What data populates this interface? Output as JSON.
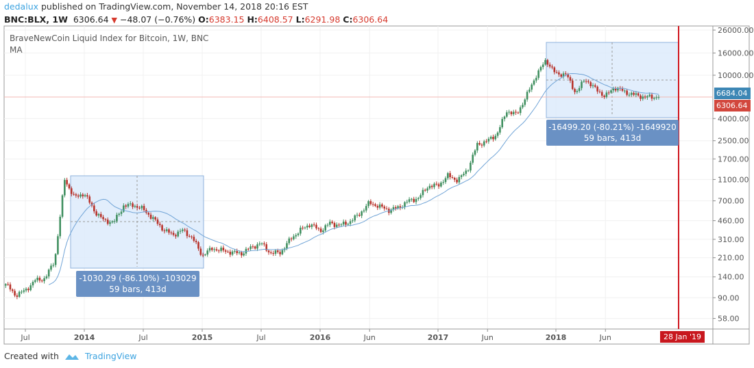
{
  "header": {
    "author": "dedalux",
    "published": "published on TradingView.com, November 14, 2018 20:16 EST",
    "symbol": "BNC:BLX, 1W",
    "last": "6306.64",
    "change": "−48.07 (−0.76%)",
    "o_label": "O:",
    "o": "6383.15",
    "h_label": "H:",
    "h": "6408.57",
    "l_label": "L:",
    "l": "6291.98",
    "c_label": "C:",
    "c": "6306.64"
  },
  "legend": {
    "title": "BraveNewCoin Liquid Index for Bitcoin, 1W, BNC",
    "indicator": "MA"
  },
  "measure1": {
    "line1": "-1030.29 (-86.10%) -103029",
    "line2": "59 bars, 413d"
  },
  "measure2": {
    "line1": "-16499.20 (-80.21%) -1649920",
    "line2": "59 bars, 413d"
  },
  "price_labels": {
    "ma": "6684.04",
    "last": "6306.64"
  },
  "date_label": "28 Jan '19",
  "footer": {
    "created": "Created with",
    "brand": "TradingView"
  },
  "colors": {
    "up": "#3f8f5f",
    "down": "#b8322a",
    "ma": "#6fa3d6",
    "measure_fill": "#ddebfb",
    "marker": "#d0161e"
  },
  "chart_data": {
    "type": "candlestick",
    "scale": "log",
    "timeframe": "1W",
    "y_ticks": [
      26000,
      16000,
      10000,
      4000,
      2500,
      1700,
      1100,
      700,
      460,
      310,
      210,
      140,
      90,
      58
    ],
    "x_ticks": [
      "Jul",
      "2014",
      "Jul",
      "2015",
      "Jul",
      "2016",
      "Jun",
      "2017",
      "Jun",
      "2018",
      "Jun"
    ],
    "monthly_closes_from_2013_05": [
      120,
      95,
      105,
      130,
      135,
      200,
      1100,
      750,
      820,
      570,
      460,
      445,
      630,
      640,
      585,
      480,
      385,
      340,
      375,
      320,
      220,
      255,
      245,
      235,
      230,
      262,
      285,
      230,
      236,
      313,
      377,
      430,
      370,
      437,
      416,
      448,
      530,
      670,
      624,
      575,
      608,
      700,
      742,
      960,
      965,
      1190,
      1080,
      1350,
      2300,
      2480,
      2870,
      4700,
      4340,
      6450,
      10000,
      13800,
      10200,
      10300,
      6900,
      9200,
      7500,
      6400,
      7750,
      7000,
      6600,
      6300,
      6306
    ]
  }
}
